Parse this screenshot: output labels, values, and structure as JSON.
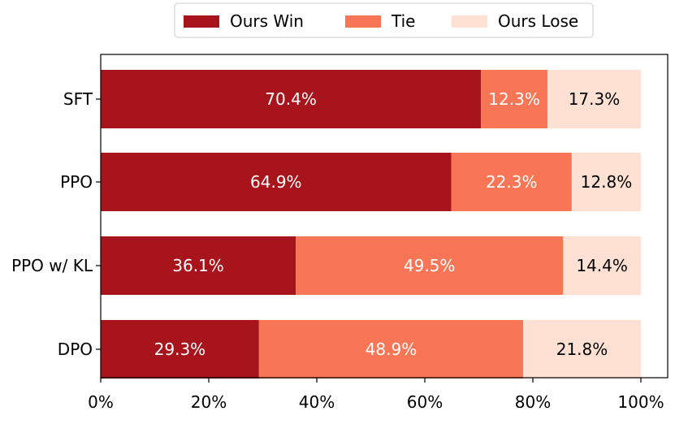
{
  "chart_data": {
    "type": "bar",
    "orientation": "horizontal",
    "stacked": true,
    "categories": [
      "SFT",
      "PPO",
      "PPO w/ KL",
      "DPO"
    ],
    "series": [
      {
        "name": "Ours Win",
        "values": [
          70.4,
          64.9,
          36.1,
          29.3
        ],
        "labels": [
          "70.4%",
          "64.9%",
          "36.1%",
          "29.3%"
        ],
        "color": "#a8141c",
        "label_color": "#ffffff"
      },
      {
        "name": "Tie",
        "values": [
          12.3,
          22.3,
          49.5,
          48.9
        ],
        "labels": [
          "12.3%",
          "22.3%",
          "49.5%",
          "48.9%"
        ],
        "color": "#f87555",
        "label_color": "#ffffff"
      },
      {
        "name": "Ours Lose",
        "values": [
          17.3,
          12.8,
          14.4,
          21.8
        ],
        "labels": [
          "17.3%",
          "12.8%",
          "14.4%",
          "21.8%"
        ],
        "color": "#fee1d3",
        "label_color": "#000000"
      }
    ],
    "x_ticks": [
      0,
      20,
      40,
      60,
      80,
      100
    ],
    "x_tick_labels": [
      "0%",
      "20%",
      "40%",
      "60%",
      "80%",
      "100%"
    ],
    "xlim": [
      0,
      100
    ],
    "title": "",
    "xlabel": "",
    "ylabel": "",
    "grid": false,
    "legend_position": "top-center"
  }
}
